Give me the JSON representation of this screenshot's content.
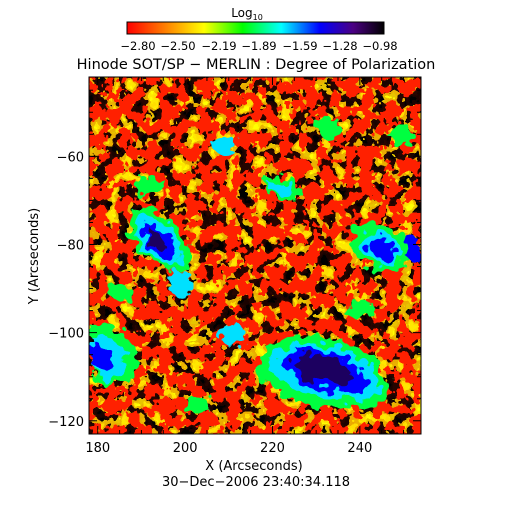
{
  "colorbar": {
    "label_base": "Log",
    "label_sub": "10",
    "ticks": [
      "−2.80",
      "−2.50",
      "−2.19",
      "−1.89",
      "−1.59",
      "−1.28",
      "−0.98"
    ],
    "range": [
      -2.8,
      -0.98
    ],
    "colormap": [
      "#ff0000",
      "#ff8000",
      "#ffff00",
      "#00ff00",
      "#00ffff",
      "#0000ff",
      "#4b0082",
      "#000000"
    ]
  },
  "title": "Hinode SOT/SP − MERLIN : Degree of Polarization",
  "map": {
    "xlabel": "X (Arcseconds)",
    "ylabel": "Y (Arcseconds)",
    "xlim": [
      178,
      254
    ],
    "ylim": [
      -123,
      -42
    ],
    "xticks": [
      180,
      200,
      220,
      240
    ],
    "yticks": [
      -60,
      -80,
      -100,
      -120
    ],
    "xtick_labels": [
      "180",
      "200",
      "220",
      "240"
    ],
    "ytick_labels": [
      "−60",
      "−80",
      "−100",
      "−120"
    ]
  },
  "timestamp": "30−Dec−2006 23:40:34.118"
}
